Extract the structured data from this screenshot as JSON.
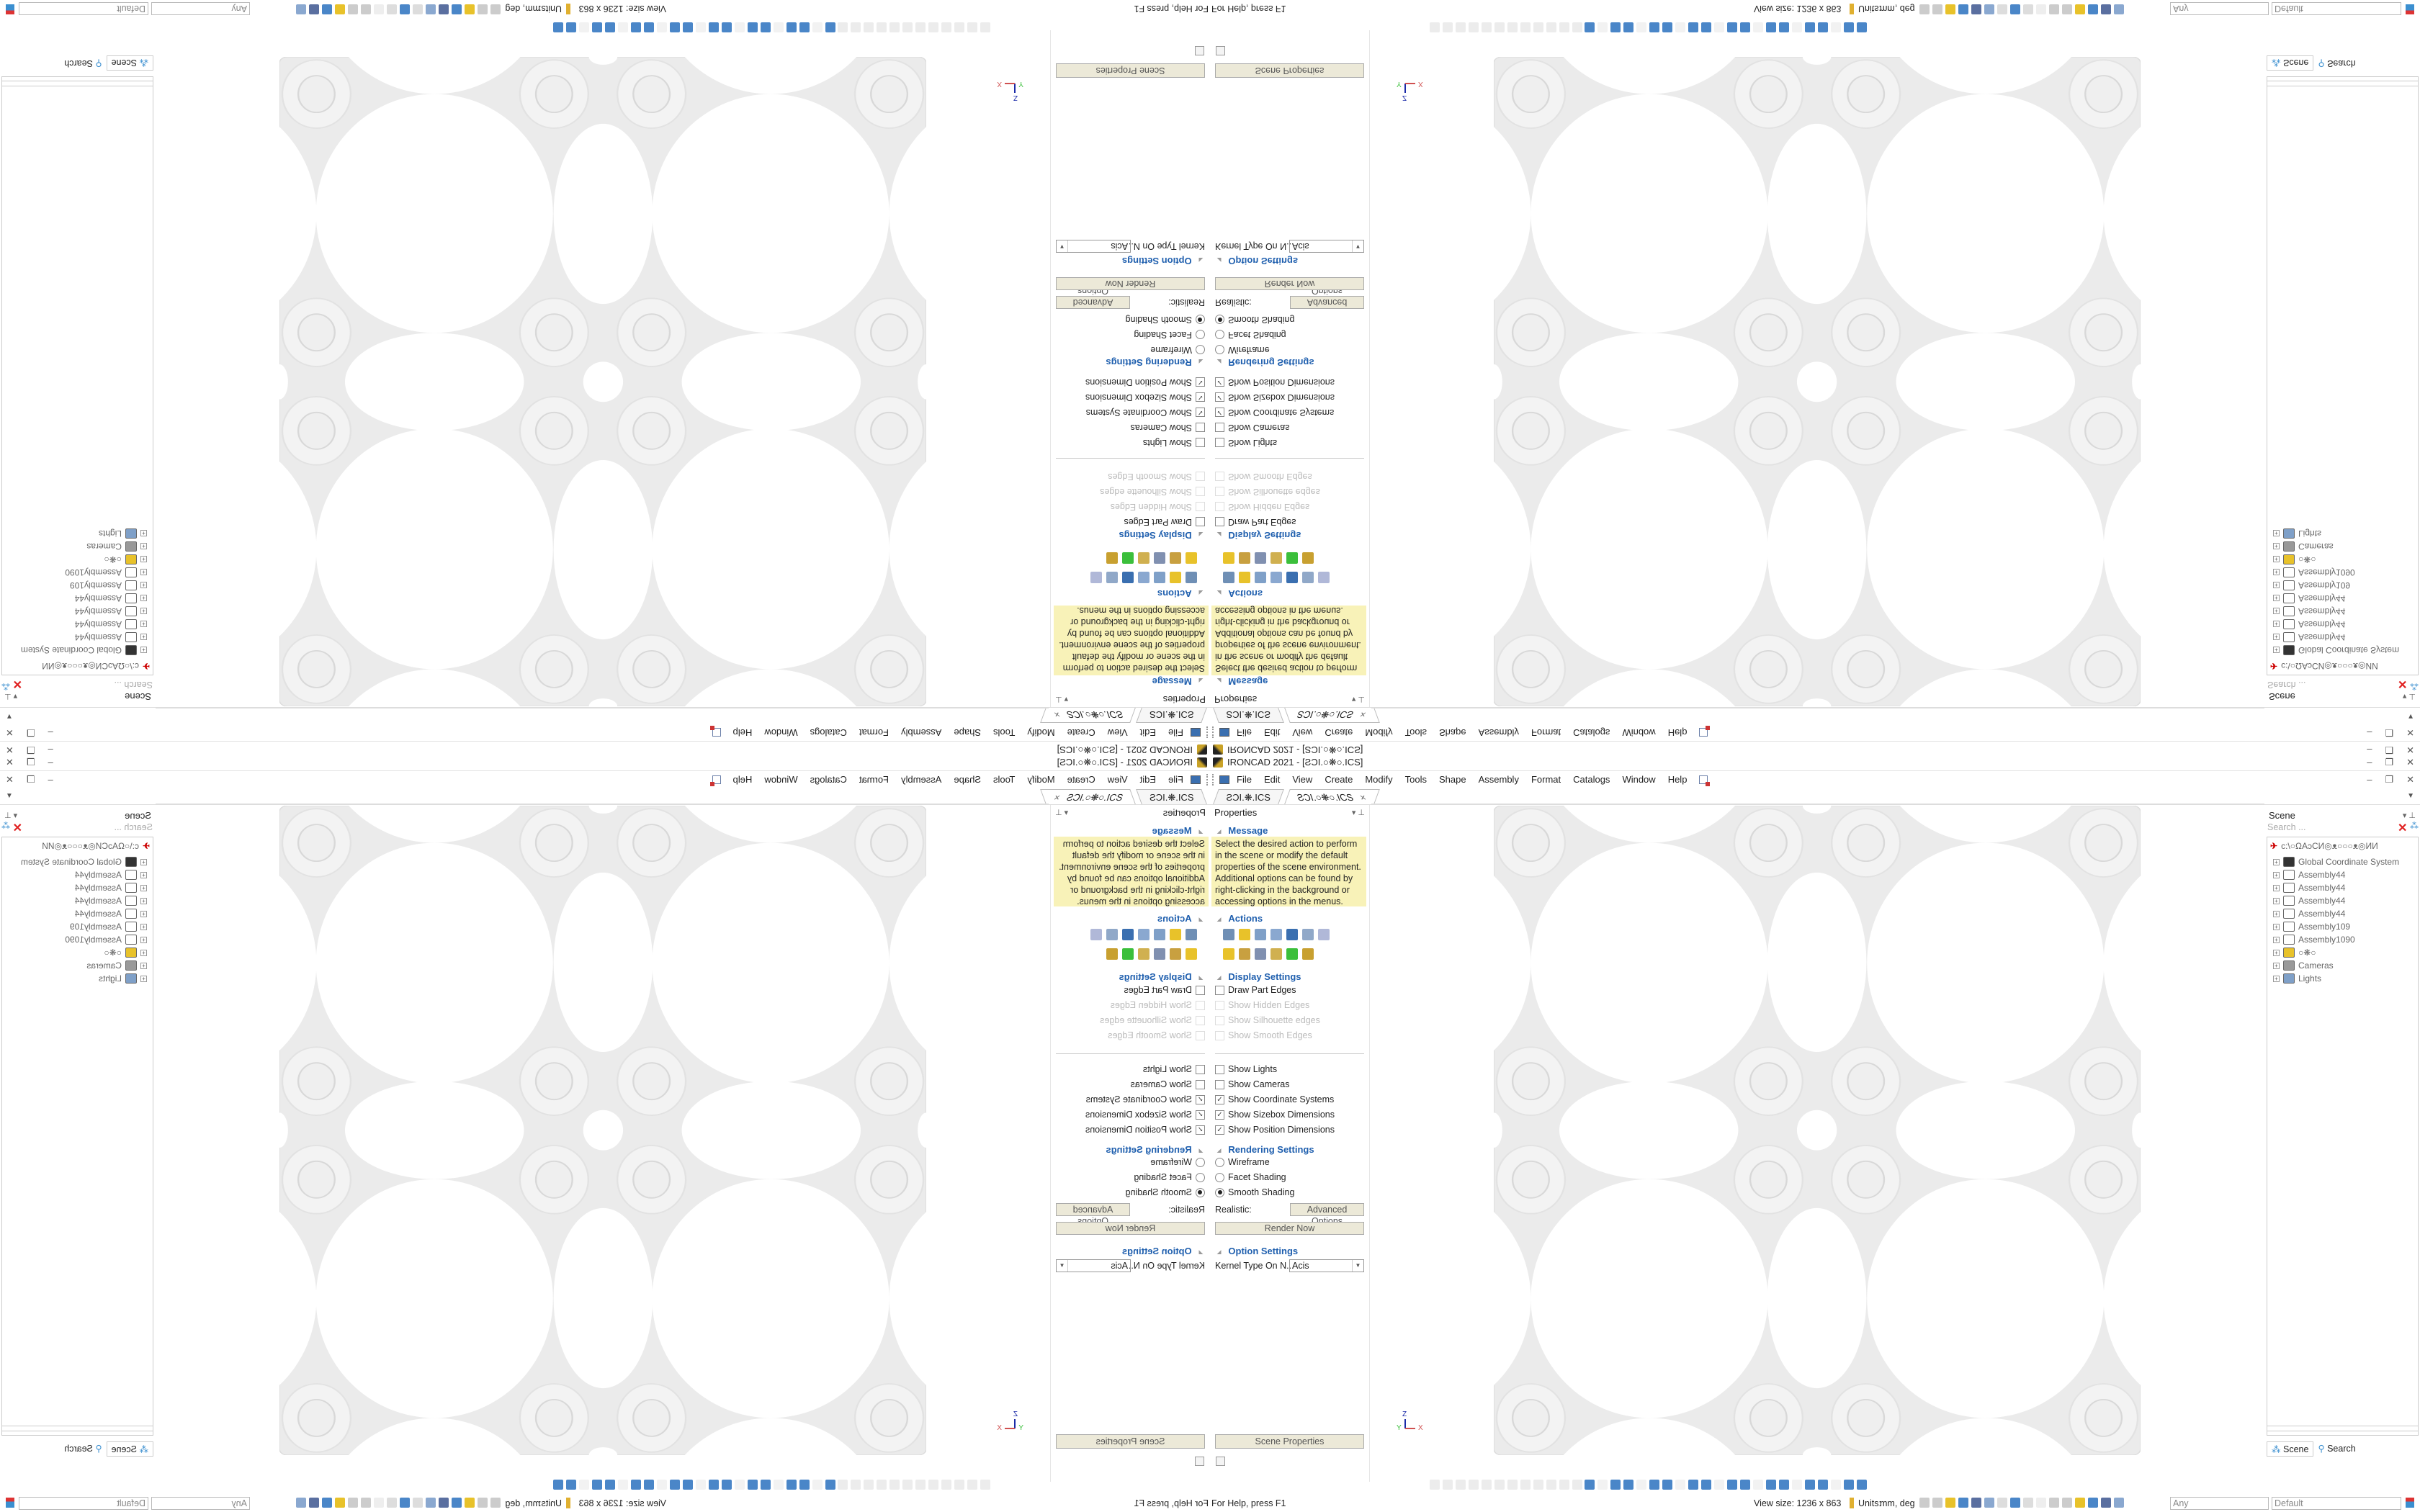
{
  "window": {
    "title": "IRONCAD 2021 - [ƧƆI.○❋○.ICS]",
    "controls": [
      "–",
      "❐",
      "✕"
    ]
  },
  "menu": [
    "File",
    "Edit",
    "View",
    "Create",
    "Modify",
    "Tools",
    "Shape",
    "Assembly",
    "Format",
    "Catalogs",
    "Window",
    "Help"
  ],
  "tabs": [
    {
      "label": "ƧƆI.❋.ICS"
    },
    {
      "label": "ƧƆI.○❋○.ICS",
      "close": "×"
    }
  ],
  "properties": {
    "title": "Properties",
    "message_header": "Message",
    "message": "Select the desired action to perform in the scene or modify the default properties of the scene environment. Additional options can be found by right-clicking in the background or accessing options in the menus.",
    "actions_header": "Actions",
    "action_icons": [
      "list-icon",
      "extrude-icon",
      "spin-icon",
      "sweep-icon",
      "loft-icon",
      "sketch-icon",
      "chart-icon",
      "box-icon",
      "gear-icon",
      "calendar-icon",
      "assembly-icon",
      "axis-icon",
      "stack-icon"
    ],
    "display_header": "Display Settings",
    "edge_items": [
      {
        "label": "Draw Part Edges",
        "checked": false,
        "enabled": true
      },
      {
        "label": "Show Hidden Edges",
        "checked": false,
        "enabled": false
      },
      {
        "label": "Show Silhouette edges",
        "checked": false,
        "enabled": false
      },
      {
        "label": "Show Smooth Edges",
        "checked": false,
        "enabled": false
      }
    ],
    "show_items": [
      {
        "label": "Show Lights",
        "checked": false
      },
      {
        "label": "Show Cameras",
        "checked": false
      },
      {
        "label": "Show Coordinate Systems",
        "checked": true
      },
      {
        "label": "Show Sizebox Dimensions",
        "checked": true
      },
      {
        "label": "Show Position Dimensions",
        "checked": true
      }
    ],
    "rendering_header": "Rendering Settings",
    "rendering_options": [
      {
        "label": "Wireframe",
        "selected": false
      },
      {
        "label": "Facet Shading",
        "selected": false
      },
      {
        "label": "Smooth Shading",
        "selected": true
      }
    ],
    "realistic_label": "Realistic:",
    "advanced_options": "Advanced Options",
    "render_now": "Render Now",
    "option_header": "Option Settings",
    "kernel_label": "Kernel Type On N...",
    "kernel_value": "Acis",
    "scene_properties": "Scene Properties"
  },
  "scene": {
    "title": "Scene",
    "search_placeholder": "Search ...",
    "root": "c:\\○ΩAↄCИ◎ᴥ○○○ᴥ◎ИИ",
    "items": [
      "Global Coordinate System",
      "Assembly44",
      "Assembly44",
      "Assembly44",
      "Assembly44",
      "Assembly109",
      "Assembly1090",
      "○❋○",
      "Cameras",
      "Lights"
    ],
    "tabs": [
      "Scene",
      "Search"
    ]
  },
  "viewport": {
    "axis": {
      "x": "X",
      "y": "Y",
      "z": "Z"
    },
    "part_color": "#ebebeb"
  },
  "status": {
    "help": "For Help, press F1",
    "view_size": "View size: 1236 x 863",
    "units_label": "Units:",
    "units_value": "mm, deg",
    "filter": "Any",
    "style": "Default"
  },
  "colors": {
    "accent": "#1f5fae",
    "message_bg": "#f8f2b8",
    "button_bg": "#ece9d8"
  }
}
